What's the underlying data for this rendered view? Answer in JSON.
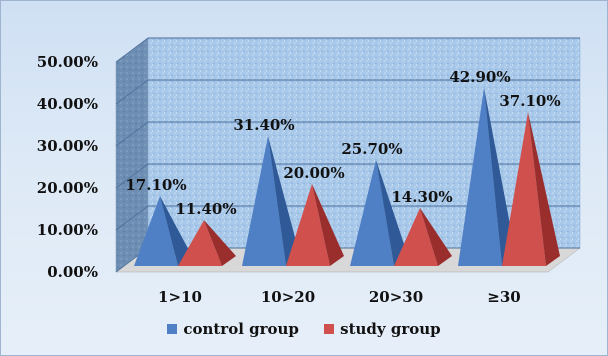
{
  "chart_data": {
    "type": "bar",
    "style": "3d-pyramid",
    "categories": [
      "1>10",
      "10>20",
      "20>30",
      "≥30"
    ],
    "series": [
      {
        "name": "control group",
        "values": [
          17.1,
          31.4,
          25.7,
          42.9
        ],
        "labels": [
          "17.10%",
          "31.40%",
          "25.70%",
          "42.90%"
        ],
        "color": "#4f7fc4"
      },
      {
        "name": "study group",
        "values": [
          11.4,
          20.0,
          14.3,
          37.1
        ],
        "labels": [
          "11.40%",
          "20.00%",
          "14.30%",
          "37.10%"
        ],
        "color": "#d0504d"
      }
    ],
    "y_ticks": [
      "0.00%",
      "10.00%",
      "20.00%",
      "30.00%",
      "40.00%",
      "50.00%"
    ],
    "ylim": [
      0,
      50
    ],
    "grid": true,
    "legend_position": "bottom",
    "wall_color": "#9fc2e6",
    "floor_color": "#d8d8d8"
  }
}
